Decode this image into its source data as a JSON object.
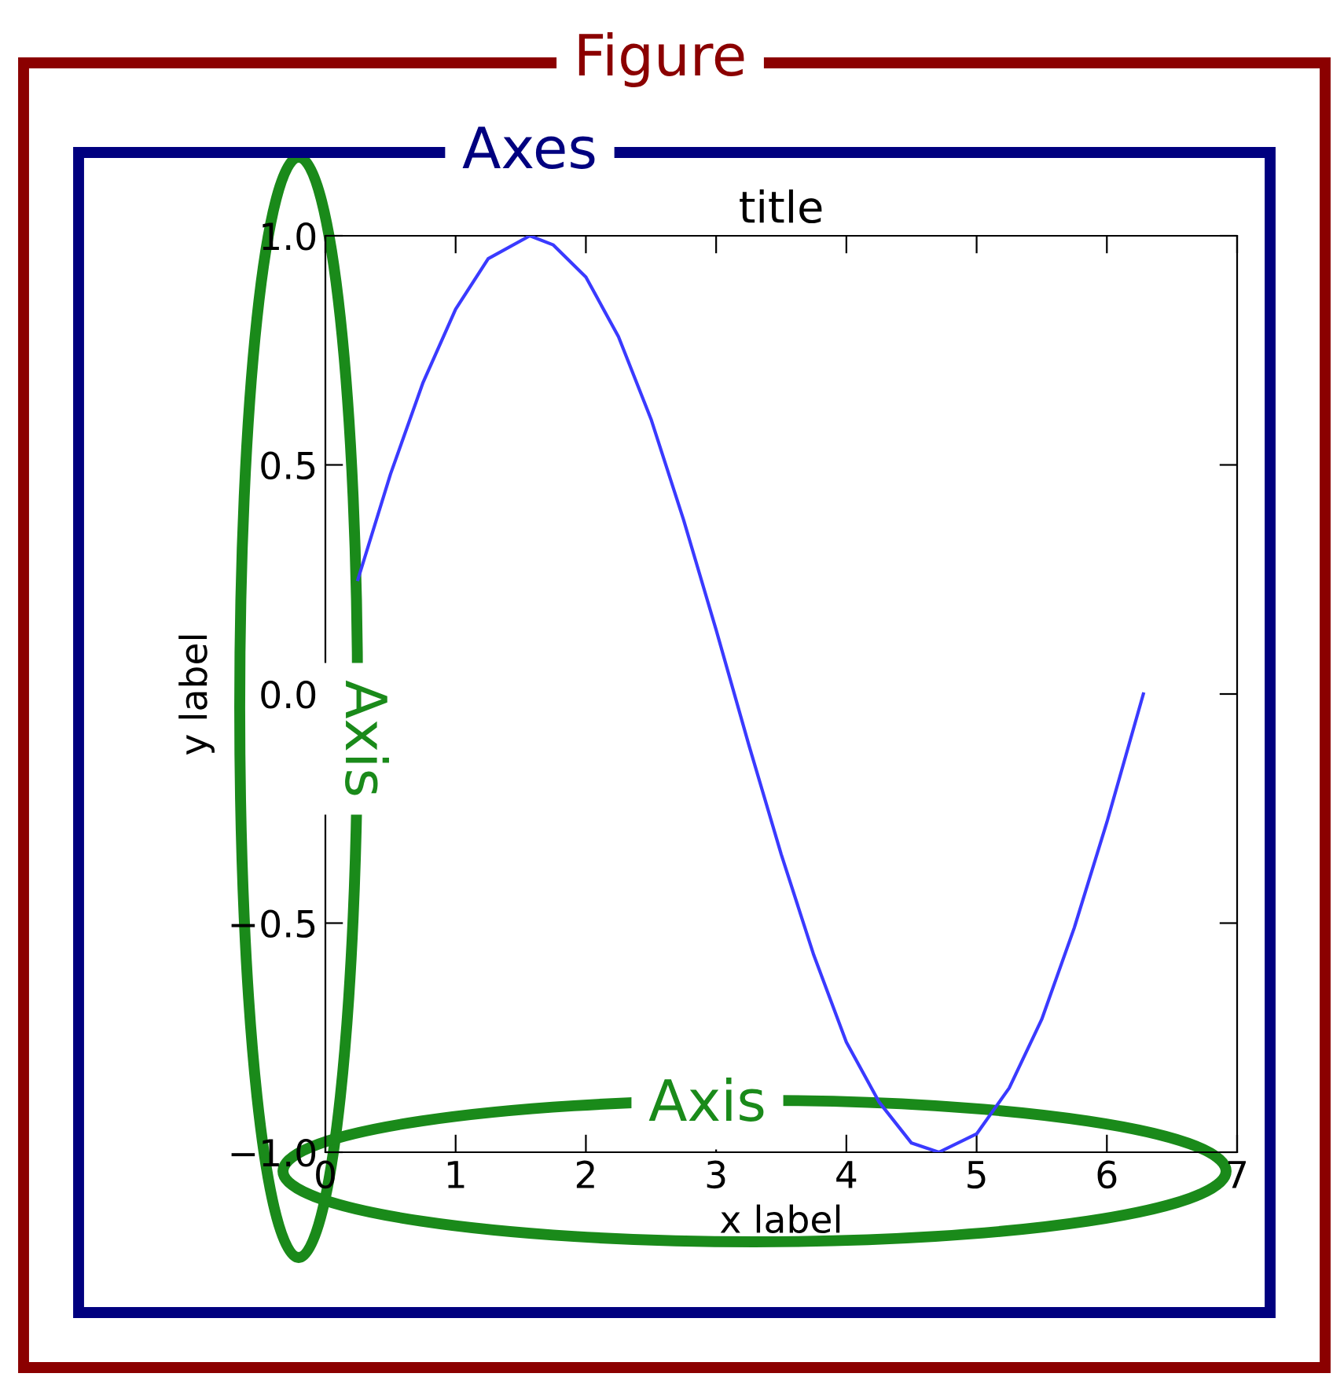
{
  "chart_data": {
    "type": "line",
    "title": "title",
    "xlabel": "x label",
    "ylabel": "y label",
    "annotations": [
      "Figure",
      "Axes",
      "Axis",
      "Axis"
    ],
    "x": [
      0.25,
      0.5,
      0.75,
      1,
      1.25,
      1.57,
      1.75,
      2,
      2.25,
      2.5,
      2.75,
      3,
      3.25,
      3.5,
      3.75,
      4,
      4.25,
      4.5,
      4.71,
      5,
      5.25,
      5.5,
      5.75,
      6,
      6.28
    ],
    "series": [
      {
        "color": "#3a3aff",
        "values": [
          0.25,
          0.48,
          0.68,
          0.84,
          0.95,
          1,
          0.98,
          0.91,
          0.78,
          0.6,
          0.38,
          0.14,
          -0.11,
          -0.35,
          -0.57,
          -0.76,
          -0.89,
          -0.98,
          -1,
          -0.96,
          -0.86,
          -0.71,
          -0.51,
          -0.28,
          0
        ]
      }
    ],
    "xlim": [
      0,
      7
    ],
    "ylim": [
      -1,
      1
    ],
    "xticks": [
      0,
      1,
      2,
      3,
      4,
      5,
      6,
      7
    ],
    "yticks": [
      {
        "value": -1,
        "label": "−1.0"
      },
      {
        "value": -0.5,
        "label": "−0.5"
      },
      {
        "value": 0,
        "label": "0.0"
      },
      {
        "value": 0.5,
        "label": "0.5"
      },
      {
        "value": 1,
        "label": "1.0"
      }
    ],
    "grid": false,
    "legend": false,
    "marker": "none",
    "line_style": "solid"
  }
}
